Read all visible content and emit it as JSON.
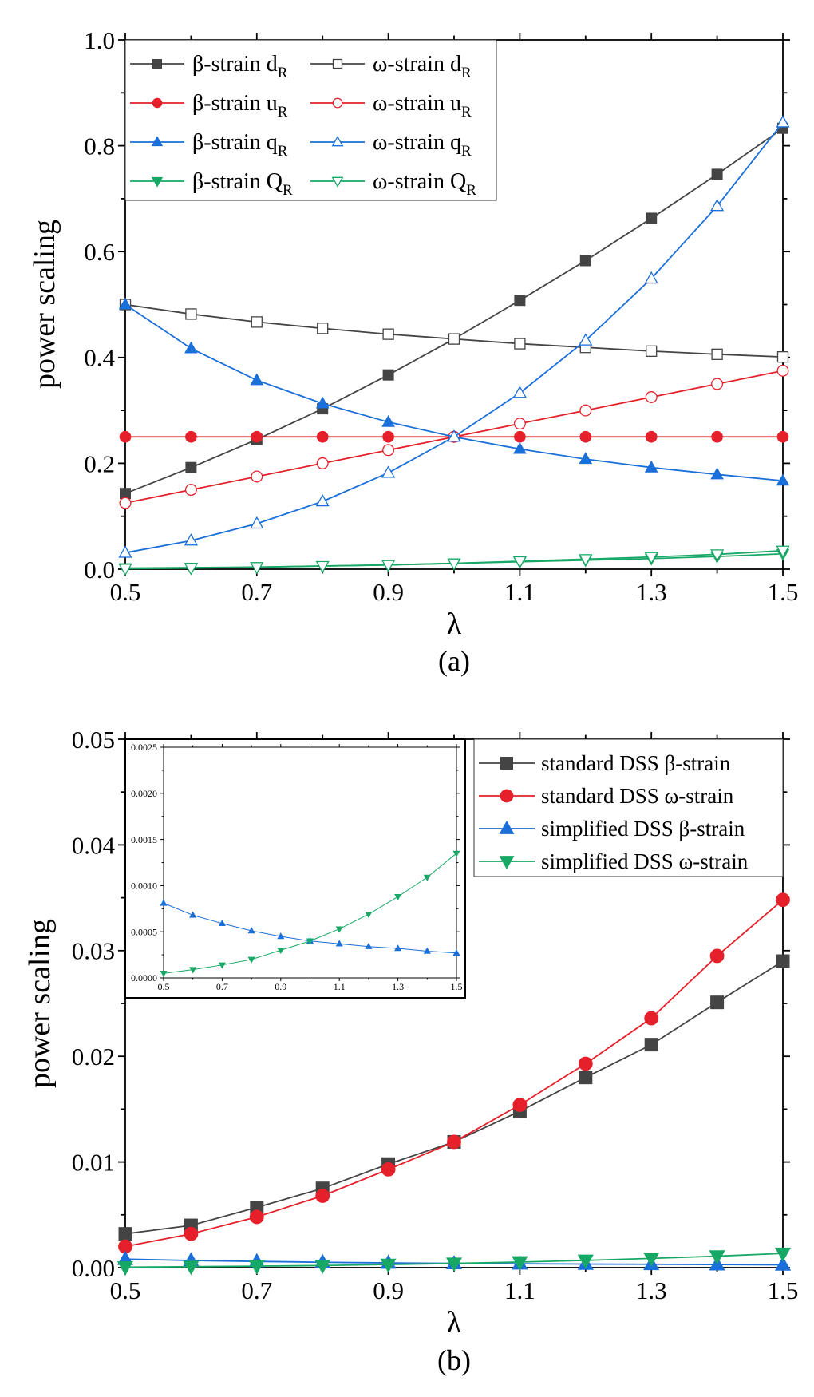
{
  "colors": {
    "black": "#444444",
    "red": "#e5202a",
    "blue": "#1a6fd8",
    "green": "#17a866",
    "axis": "#000000"
  },
  "chart_data": [
    {
      "type": "line",
      "caption": "(a)",
      "xlabel": "λ",
      "ylabel": "power scaling",
      "xlim": [
        0.5,
        1.5
      ],
      "ylim": [
        0,
        1.0
      ],
      "xticks": [
        "0.5",
        "0.7",
        "0.9",
        "1.1",
        "1.3",
        "1.5"
      ],
      "yticks": [
        "0.0",
        "0.2",
        "0.4",
        "0.6",
        "0.8",
        "1.0"
      ],
      "legend_position": "top-left",
      "x": [
        0.5,
        0.6,
        0.7,
        0.8,
        0.9,
        1.0,
        1.1,
        1.2,
        1.3,
        1.4,
        1.5
      ],
      "series": [
        {
          "name": "β-strain d",
          "sub": "R",
          "color": "black",
          "marker": "square-filled",
          "values": [
            0.143,
            0.192,
            0.245,
            0.303,
            0.367,
            0.435,
            0.508,
            0.583,
            0.663,
            0.746,
            0.833
          ]
        },
        {
          "name": "ω-strain d",
          "sub": "R",
          "color": "black",
          "marker": "square-open",
          "values": [
            0.5,
            0.482,
            0.467,
            0.455,
            0.444,
            0.435,
            0.426,
            0.419,
            0.412,
            0.406,
            0.401
          ]
        },
        {
          "name": "β-strain u",
          "sub": "R",
          "color": "red",
          "marker": "circle-filled",
          "values": [
            0.25,
            0.25,
            0.25,
            0.25,
            0.25,
            0.25,
            0.25,
            0.25,
            0.25,
            0.25,
            0.25
          ]
        },
        {
          "name": "ω-strain u",
          "sub": "R",
          "color": "red",
          "marker": "circle-open",
          "values": [
            0.125,
            0.15,
            0.175,
            0.2,
            0.225,
            0.25,
            0.275,
            0.3,
            0.325,
            0.35,
            0.375
          ]
        },
        {
          "name": "β-strain q",
          "sub": "R",
          "color": "blue",
          "marker": "triangle-up-filled",
          "values": [
            0.5,
            0.417,
            0.357,
            0.313,
            0.278,
            0.25,
            0.227,
            0.208,
            0.192,
            0.179,
            0.167
          ]
        },
        {
          "name": "ω-strain q",
          "sub": "R",
          "color": "blue",
          "marker": "triangle-up-open",
          "values": [
            0.031,
            0.054,
            0.086,
            0.128,
            0.182,
            0.25,
            0.333,
            0.432,
            0.549,
            0.686,
            0.844
          ]
        },
        {
          "name": "β-strain Q",
          "sub": "R",
          "color": "green",
          "marker": "triangle-down-filled",
          "values": [
            0.002,
            0.003,
            0.004,
            0.006,
            0.008,
            0.011,
            0.014,
            0.017,
            0.02,
            0.024,
            0.029
          ]
        },
        {
          "name": "ω-strain Q",
          "sub": "R",
          "color": "green",
          "marker": "triangle-down-open",
          "values": [
            0.001,
            0.002,
            0.004,
            0.006,
            0.008,
            0.011,
            0.015,
            0.019,
            0.023,
            0.028,
            0.035
          ]
        }
      ]
    },
    {
      "type": "line",
      "caption": "(b)",
      "xlabel": "λ",
      "ylabel": "power scaling",
      "xlim": [
        0.5,
        1.5
      ],
      "ylim": [
        0,
        0.05
      ],
      "xticks": [
        "0.5",
        "0.7",
        "0.9",
        "1.1",
        "1.3",
        "1.5"
      ],
      "yticks": [
        "0.00",
        "0.01",
        "0.02",
        "0.03",
        "0.04",
        "0.05"
      ],
      "legend_position": "top-right",
      "x": [
        0.5,
        0.6,
        0.7,
        0.8,
        0.9,
        1.0,
        1.1,
        1.2,
        1.3,
        1.4,
        1.5
      ],
      "series": [
        {
          "name": "standard DSS β-strain",
          "color": "black",
          "marker": "square-filled",
          "values": [
            0.0032,
            0.004,
            0.0057,
            0.0075,
            0.0098,
            0.0119,
            0.0148,
            0.018,
            0.0211,
            0.0251,
            0.029
          ]
        },
        {
          "name": "standard DSS ω-strain",
          "color": "red",
          "marker": "circle-filled",
          "values": [
            0.002,
            0.0032,
            0.0048,
            0.0068,
            0.0093,
            0.0119,
            0.0154,
            0.0193,
            0.0236,
            0.0295,
            0.0348
          ]
        },
        {
          "name": "simplified DSS β-strain",
          "color": "blue",
          "marker": "triangle-up-filled",
          "values": [
            0.00081,
            0.00068,
            0.00059,
            0.00051,
            0.00045,
            0.0004,
            0.00037,
            0.00034,
            0.00032,
            0.00029,
            0.00027
          ]
        },
        {
          "name": "simplified DSS ω-strain",
          "color": "green",
          "marker": "triangle-down-filled",
          "values": [
            5e-05,
            9e-05,
            0.00014,
            0.0002,
            0.0003,
            0.0004,
            0.00053,
            0.00069,
            0.00088,
            0.00109,
            0.00135
          ]
        }
      ],
      "inset": {
        "xlim": [
          0.5,
          1.5
        ],
        "ylim": [
          0,
          0.0025
        ],
        "xticks": [
          "0.5",
          "0.7",
          "0.9",
          "1.1",
          "1.3",
          "1.5"
        ],
        "yticks": [
          "0.0000",
          "0.0005",
          "0.0010",
          "0.0015",
          "0.0020",
          "0.0025"
        ],
        "series_shown": [
          2,
          3
        ]
      }
    }
  ]
}
